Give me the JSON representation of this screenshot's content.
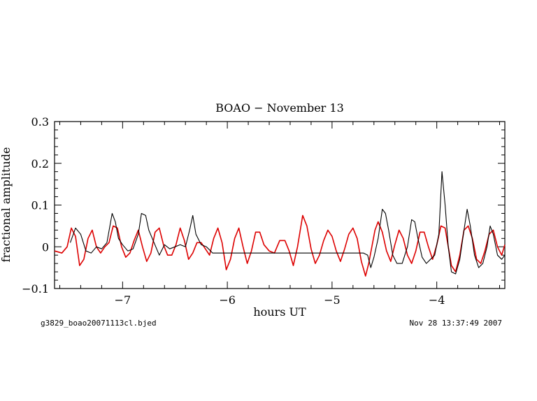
{
  "chart_data": {
    "type": "line",
    "title": "BOAO − November 13",
    "xlabel": "hours UT",
    "ylabel": "fractional amplitude",
    "xlim": [
      -7.65,
      -3.35
    ],
    "ylim": [
      -0.1,
      0.3
    ],
    "x_ticks": [
      -7,
      -6,
      -5,
      -4
    ],
    "x_tick_labels": [
      "−7",
      "−6",
      "−5",
      "−4"
    ],
    "y_ticks": [
      -0.1,
      0,
      0.1,
      0.2,
      0.3
    ],
    "y_tick_labels": [
      "−0.1",
      "0",
      "0.1",
      "0.2",
      "0.3"
    ],
    "grid": false,
    "series": [
      {
        "color": "#000000",
        "x": [
          -7.5,
          -7.45,
          -7.4,
          -7.35,
          -7.3,
          -7.25,
          -7.2,
          -7.15,
          -7.1,
          -7.07,
          -7.04,
          -7.0,
          -6.95,
          -6.9,
          -6.85,
          -6.82,
          -6.78,
          -6.75,
          -6.7,
          -6.65,
          -6.6,
          -6.55,
          -6.5,
          -6.45,
          -6.4,
          -6.36,
          -6.33,
          -6.3,
          -6.25,
          -6.2,
          -6.16,
          -6.14,
          -6.12,
          -5.5,
          -5.0,
          -4.7,
          -4.66,
          -4.63,
          -4.6,
          -4.56,
          -4.52,
          -4.49,
          -4.46,
          -4.42,
          -4.38,
          -4.33,
          -4.28,
          -4.24,
          -4.21,
          -4.18,
          -4.14,
          -4.1,
          -4.06,
          -4.02,
          -3.98,
          -3.95,
          -3.92,
          -3.89,
          -3.86,
          -3.82,
          -3.78,
          -3.74,
          -3.71,
          -3.68,
          -3.64,
          -3.6,
          -3.56,
          -3.52,
          -3.49,
          -3.46,
          -3.42,
          -3.38,
          -3.35
        ],
        "y": [
          0.01,
          0.045,
          0.03,
          -0.01,
          -0.015,
          0.0,
          -0.005,
          0.01,
          0.08,
          0.06,
          0.02,
          0.005,
          -0.01,
          -0.005,
          0.03,
          0.08,
          0.075,
          0.04,
          0.01,
          -0.02,
          0.005,
          -0.005,
          0.0,
          0.005,
          0.0,
          0.04,
          0.075,
          0.03,
          0.005,
          0.0,
          -0.01,
          -0.015,
          -0.015,
          -0.015,
          -0.015,
          -0.015,
          -0.02,
          -0.05,
          -0.025,
          0.02,
          0.09,
          0.08,
          0.04,
          -0.02,
          -0.04,
          -0.04,
          0.0,
          0.065,
          0.06,
          0.02,
          -0.025,
          -0.04,
          -0.03,
          -0.02,
          0.03,
          0.18,
          0.1,
          0.0,
          -0.06,
          -0.065,
          -0.03,
          0.04,
          0.09,
          0.05,
          -0.02,
          -0.05,
          -0.04,
          0.0,
          0.05,
          0.03,
          -0.02,
          -0.03,
          -0.02
        ]
      },
      {
        "color": "#dd0000",
        "x": [
          -7.65,
          -7.58,
          -7.53,
          -7.49,
          -7.45,
          -7.41,
          -7.37,
          -7.33,
          -7.29,
          -7.25,
          -7.21,
          -7.17,
          -7.13,
          -7.09,
          -7.05,
          -7.01,
          -6.97,
          -6.93,
          -6.89,
          -6.85,
          -6.81,
          -6.77,
          -6.73,
          -6.69,
          -6.65,
          -6.61,
          -6.57,
          -6.53,
          -6.49,
          -6.45,
          -6.41,
          -6.37,
          -6.33,
          -6.29,
          -6.25,
          -6.21,
          -6.17,
          -6.13,
          -6.09,
          -6.05,
          -6.01,
          -5.97,
          -5.93,
          -5.89,
          -5.85,
          -5.81,
          -5.77,
          -5.73,
          -5.69,
          -5.65,
          -5.6,
          -5.55,
          -5.5,
          -5.45,
          -5.41,
          -5.37,
          -5.33,
          -5.28,
          -5.24,
          -5.2,
          -5.16,
          -5.12,
          -5.08,
          -5.04,
          -5.0,
          -4.96,
          -4.92,
          -4.88,
          -4.84,
          -4.8,
          -4.76,
          -4.72,
          -4.68,
          -4.65,
          -4.62,
          -4.59,
          -4.56,
          -4.52,
          -4.48,
          -4.44,
          -4.4,
          -4.36,
          -4.32,
          -4.28,
          -4.24,
          -4.2,
          -4.16,
          -4.12,
          -4.08,
          -4.04,
          -4.0,
          -3.96,
          -3.92,
          -3.89,
          -3.86,
          -3.82,
          -3.78,
          -3.74,
          -3.7,
          -3.66,
          -3.62,
          -3.58,
          -3.54,
          -3.5,
          -3.46,
          -3.42,
          -3.38,
          -3.35
        ],
        "y": [
          -0.01,
          -0.015,
          0.0,
          0.045,
          0.025,
          -0.045,
          -0.03,
          0.02,
          0.04,
          0.0,
          -0.015,
          0.0,
          0.01,
          0.05,
          0.045,
          0.0,
          -0.025,
          -0.015,
          0.015,
          0.04,
          0.0,
          -0.035,
          -0.015,
          0.035,
          0.045,
          0.005,
          -0.02,
          -0.02,
          0.005,
          0.045,
          0.015,
          -0.03,
          -0.015,
          0.01,
          0.01,
          -0.005,
          -0.02,
          0.02,
          0.045,
          0.01,
          -0.055,
          -0.03,
          0.02,
          0.045,
          0.0,
          -0.04,
          -0.01,
          0.035,
          0.035,
          0.005,
          -0.01,
          -0.015,
          0.015,
          0.015,
          -0.01,
          -0.045,
          0.0,
          0.075,
          0.05,
          -0.005,
          -0.04,
          -0.02,
          0.015,
          0.04,
          0.025,
          -0.01,
          -0.035,
          -0.005,
          0.03,
          0.045,
          0.02,
          -0.035,
          -0.07,
          -0.04,
          0.0,
          0.04,
          0.06,
          0.035,
          -0.01,
          -0.035,
          0.005,
          0.04,
          0.02,
          -0.02,
          -0.04,
          -0.01,
          0.035,
          0.035,
          0.0,
          -0.03,
          0.005,
          0.05,
          0.045,
          0.0,
          -0.045,
          -0.06,
          -0.02,
          0.04,
          0.05,
          0.02,
          -0.03,
          -0.04,
          -0.01,
          0.03,
          0.04,
          0.0,
          -0.02,
          0.005
        ]
      }
    ]
  },
  "footer": {
    "left": "g3829_boao20071113cl.bjed",
    "right": "Nov 28 13:37:49 2007"
  }
}
